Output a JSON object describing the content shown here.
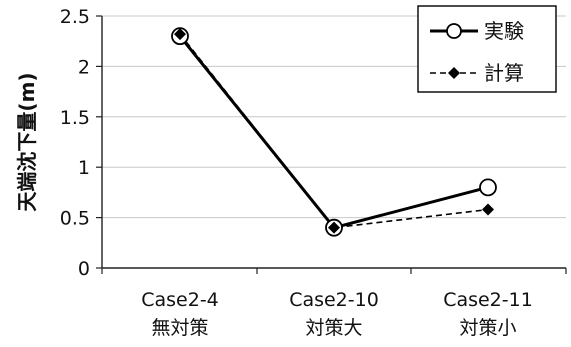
{
  "chart_data": {
    "type": "line",
    "title": "",
    "ylabel": "天端沈下量(m)",
    "xlabel": "",
    "ylim": [
      0,
      2.5
    ],
    "yticks": [
      "0",
      "0.5",
      "1",
      "1.5",
      "2",
      "2.5"
    ],
    "grid": true,
    "legend_position": "top-right",
    "categories": [
      {
        "line1": "Case2-4",
        "line2": "無対策"
      },
      {
        "line1": "Case2-10",
        "line2": "対策大"
      },
      {
        "line1": "Case2-11",
        "line2": "対策小"
      }
    ],
    "series": [
      {
        "name": "実験",
        "values": [
          2.3,
          0.4,
          0.8
        ],
        "line_style": "solid",
        "marker": "open-circle",
        "color": "#000000"
      },
      {
        "name": "計算",
        "values": [
          2.32,
          0.4,
          0.58
        ],
        "line_style": "dashed",
        "marker": "diamond",
        "color": "#000000"
      }
    ]
  }
}
